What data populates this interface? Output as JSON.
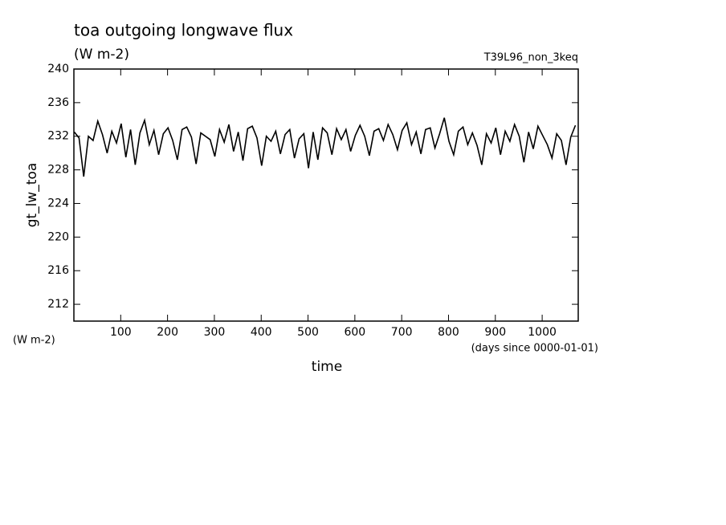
{
  "chart_data": {
    "type": "line",
    "title": "toa outgoing longwave flux",
    "subtitle": "(W m-2)",
    "run_label": "T39L96_non_3keq",
    "y_label": "gt_lw_toa",
    "y_unit": "(W m-2)",
    "x_label": "time",
    "x_unit": "(days since 0000-01-01)",
    "color": "#000000",
    "xlim": [
      0,
      1077
    ],
    "ylim": [
      210,
      240
    ],
    "xticks": [
      100,
      200,
      300,
      400,
      500,
      600,
      700,
      800,
      900,
      1000
    ],
    "yticks": [
      212,
      216,
      220,
      224,
      228,
      232,
      236,
      240
    ],
    "x": [
      1,
      11,
      21,
      31,
      41,
      51,
      61,
      71,
      81,
      91,
      101,
      111,
      121,
      131,
      141,
      151,
      161,
      171,
      181,
      191,
      201,
      211,
      221,
      231,
      241,
      251,
      261,
      271,
      281,
      291,
      301,
      311,
      321,
      331,
      341,
      351,
      361,
      371,
      381,
      391,
      401,
      411,
      421,
      431,
      441,
      451,
      461,
      471,
      481,
      491,
      501,
      511,
      521,
      531,
      541,
      551,
      561,
      571,
      581,
      591,
      601,
      611,
      621,
      631,
      641,
      651,
      661,
      671,
      681,
      691,
      701,
      711,
      721,
      731,
      741,
      751,
      761,
      771,
      781,
      791,
      801,
      811,
      821,
      831,
      841,
      851,
      861,
      871,
      881,
      891,
      901,
      911,
      921,
      931,
      941,
      951,
      961,
      971,
      981,
      991,
      1001,
      1011,
      1021,
      1031,
      1041,
      1051,
      1061,
      1071
    ],
    "values": [
      232.5,
      231.8,
      227.2,
      232.0,
      231.5,
      233.8,
      232.2,
      230.0,
      232.6,
      231.2,
      233.5,
      229.5,
      232.8,
      228.6,
      232.4,
      233.9,
      231.0,
      232.7,
      229.8,
      232.3,
      233.0,
      231.5,
      229.2,
      232.8,
      233.1,
      231.9,
      228.7,
      232.4,
      232.0,
      231.6,
      229.6,
      232.8,
      231.3,
      233.4,
      230.2,
      232.5,
      229.1,
      232.9,
      233.2,
      231.8,
      228.5,
      232.0,
      231.4,
      232.6,
      229.9,
      232.2,
      232.8,
      229.4,
      231.7,
      232.3,
      228.2,
      232.5,
      229.2,
      233.0,
      232.4,
      229.8,
      232.9,
      231.6,
      232.8,
      230.2,
      232.1,
      233.3,
      232.0,
      229.7,
      232.6,
      232.9,
      231.5,
      233.4,
      232.2,
      230.4,
      232.7,
      233.6,
      231.0,
      232.5,
      229.9,
      232.8,
      233.0,
      230.6,
      232.3,
      234.2,
      231.4,
      229.8,
      232.6,
      233.1,
      231.0,
      232.4,
      230.9,
      228.6,
      232.3,
      231.2,
      233.0,
      229.8,
      232.6,
      231.4,
      233.4,
      232.0,
      228.9,
      232.5,
      230.5,
      233.2,
      232.1,
      231.0,
      229.4,
      232.3,
      231.5,
      228.6,
      231.9,
      233.3
    ]
  }
}
